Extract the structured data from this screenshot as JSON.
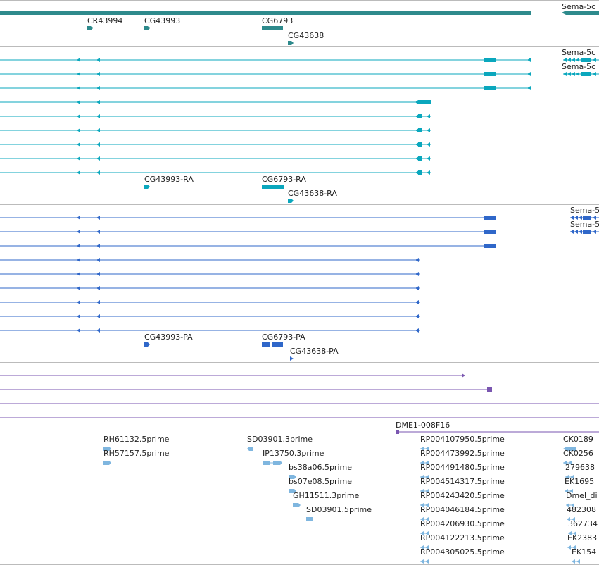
{
  "colors": {
    "gene": "#2e8a8c",
    "mrna": "#0aa7bd",
    "cds": "#2f67c9",
    "est": "#7a56b0",
    "cdna": "#7fb6df",
    "separator": "#bbbbbb"
  },
  "tracks": {
    "gene": {
      "labels": [
        "Sema-5c",
        "CR43994",
        "CG43993",
        "CG6793",
        "CG43638"
      ]
    },
    "mrna": {
      "labels": [
        "Sema-5c",
        "Sema-5c",
        "CG43993-RA",
        "CG6793-RA",
        "CG43638-RA"
      ],
      "transcript_count": 9
    },
    "cds": {
      "labels": [
        "Sema-5",
        "Sema-5",
        "CG43993-PA",
        "CG6793-PA",
        "CG43638-PA"
      ],
      "transcript_count": 9
    },
    "est": {
      "labels": [
        "DME1-008F16"
      ]
    },
    "cdna": {
      "labels": [
        "RH61132.5prime",
        "RH57157.5prime",
        "SD03901.3prime",
        "IP13750.3prime",
        "bs38a06.5prime",
        "bs07e08.5prime",
        "GH11511.3prime",
        "SD03901.5prime",
        "RP004107950.5prime",
        "RP004473992.5prime",
        "RP004491480.5prime",
        "RP004514317.5prime",
        "RP004243420.5prime",
        "RP004046184.5prime",
        "RP004206930.5prime",
        "RP004122213.5prime",
        "RP004305025.5prime",
        "CK0189",
        "CK0256",
        "279638",
        "EK1695",
        "Dmel_di",
        "482308",
        "362734",
        "EK2383",
        "EK154"
      ]
    }
  }
}
